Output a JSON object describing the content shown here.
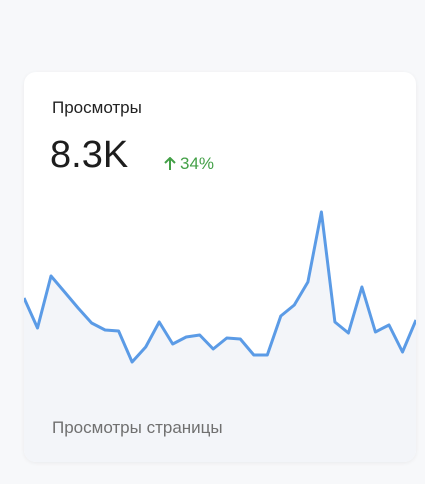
{
  "card": {
    "title": "Просмотры",
    "value": "8.3K",
    "change": "34%",
    "footer": "Просмотры страницы"
  },
  "chart_data": {
    "type": "line",
    "color": "#5b9be6",
    "fill": "#f3f5f9",
    "values": [
      102,
      72,
      124,
      108,
      92,
      77,
      70,
      69,
      38,
      53,
      78,
      56,
      63,
      65,
      51,
      62,
      61,
      45,
      45,
      84,
      95,
      118,
      188,
      78,
      67,
      113,
      68,
      75,
      48,
      80
    ],
    "ylim": [
      0,
      200
    ]
  }
}
